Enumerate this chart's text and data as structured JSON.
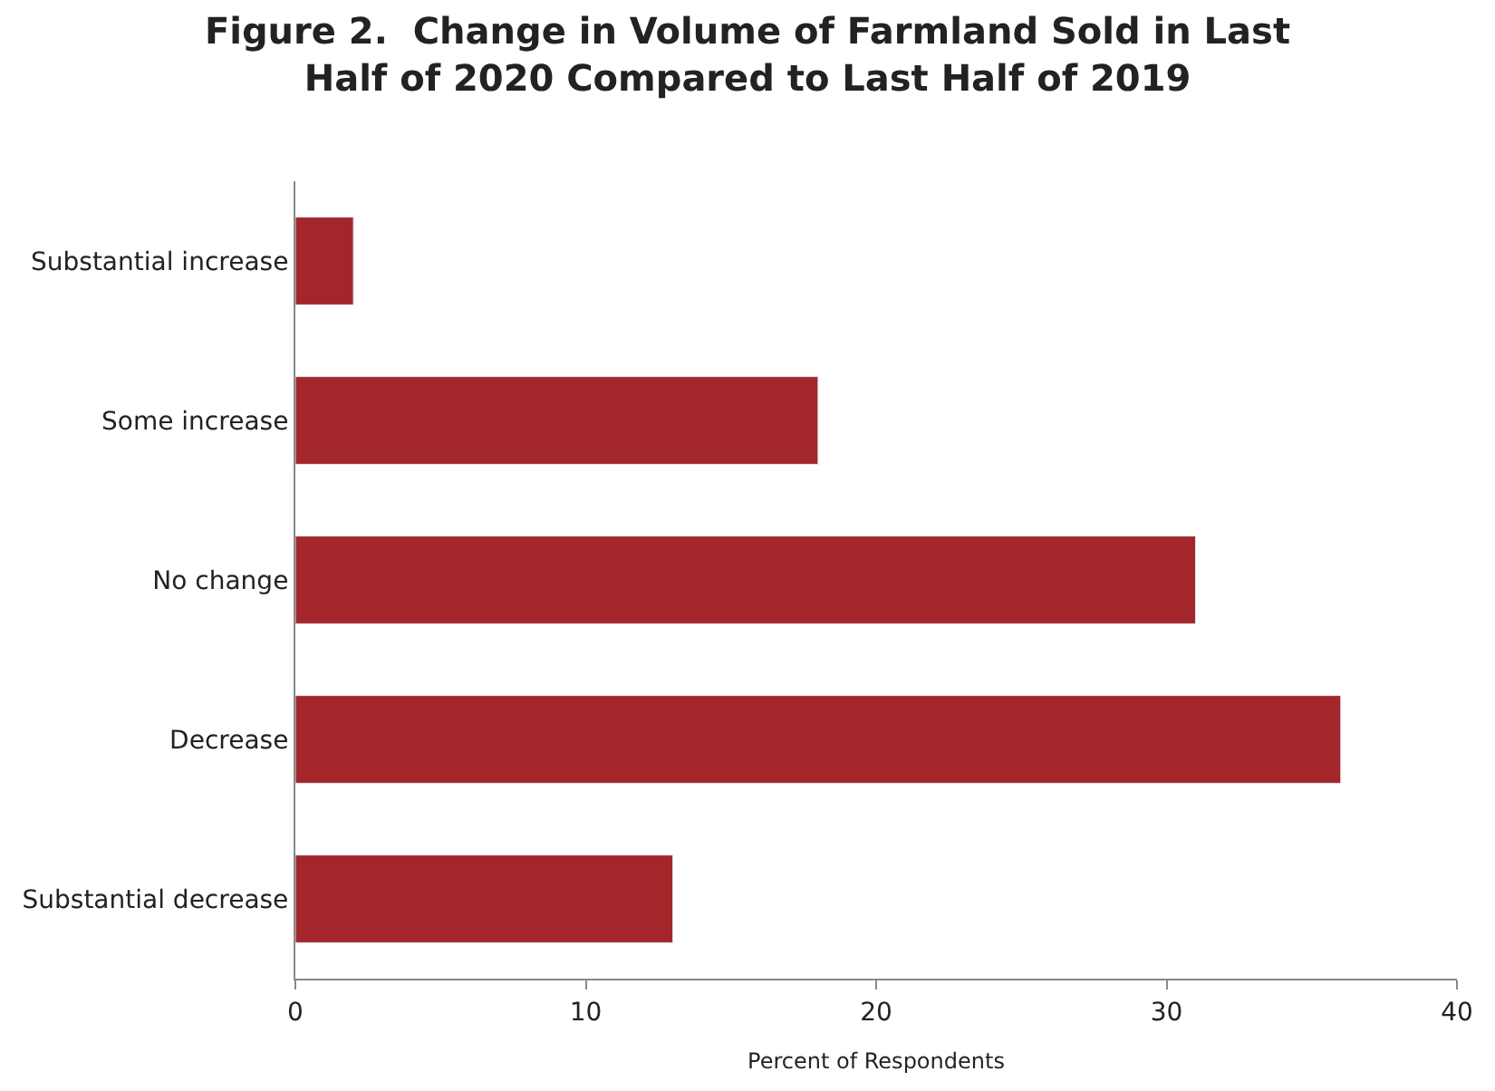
{
  "chart_data": {
    "type": "bar",
    "orientation": "horizontal",
    "title": "Figure 2.  Change in Volume of Farmland Sold in Last\nHalf of 2020 Compared to Last Half of 2019",
    "categories": [
      "Substantial increase",
      "Some increase",
      "No change",
      "Decrease",
      "Substantial decrease"
    ],
    "values": [
      2,
      18,
      31,
      36,
      13
    ],
    "color": "#a3262a",
    "xlabel": "Percent of Respondents",
    "xlim": [
      0,
      40
    ],
    "xticks": [
      0,
      10,
      20,
      30,
      40
    ],
    "legend": false
  }
}
